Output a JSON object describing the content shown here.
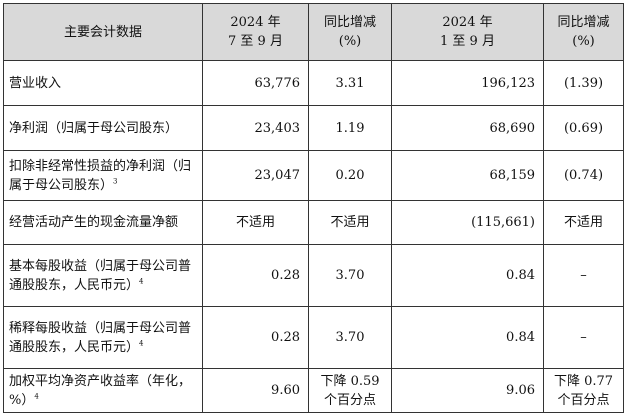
{
  "header": {
    "item": "主要会计数据",
    "q_year": "2024 年",
    "q_period": "7 至 9 月",
    "q_yoy": "同比增减",
    "q_unit": "(%)",
    "ytd_year": "2024 年",
    "ytd_period": "1 至 9 月",
    "ytd_yoy": "同比增减",
    "ytd_unit": "(%)"
  },
  "rows": [
    {
      "label": "营业收入",
      "note": "",
      "q": "63,776",
      "q_yoy": "3.31",
      "ytd": "196,123",
      "ytd_yoy": "(1.39)"
    },
    {
      "label": "净利润（归属于母公司股东）",
      "note": "",
      "q": "23,403",
      "q_yoy": "1.19",
      "ytd": "68,690",
      "ytd_yoy": "(0.69)"
    },
    {
      "label": "扣除非经常性损益的净利润（归属于母公司股东）",
      "note": "3",
      "q": "23,047",
      "q_yoy": "0.20",
      "ytd": "68,159",
      "ytd_yoy": "(0.74)"
    },
    {
      "label": "经营活动产生的现金流量净额",
      "note": "",
      "q": "不适用",
      "q_yoy": "不适用",
      "ytd": "(115,661)",
      "ytd_yoy": "不适用"
    },
    {
      "label": "基本每股收益（归属于母公司普通股股东，人民币元）",
      "note": "4",
      "q": "0.28",
      "q_yoy": "3.70",
      "ytd": "0.84",
      "ytd_yoy": "–"
    },
    {
      "label": "稀释每股收益（归属于母公司普通股股东，人民币元）",
      "note": "4",
      "q": "0.28",
      "q_yoy": "3.70",
      "ytd": "0.84",
      "ytd_yoy": "–"
    },
    {
      "label": "加权平均净资产收益率（年化，%）",
      "note": "4",
      "q": "9.60",
      "q_yoy": "下降 0.59 个百分点",
      "ytd": "9.06",
      "ytd_yoy": "下降 0.77 个百分点"
    }
  ]
}
